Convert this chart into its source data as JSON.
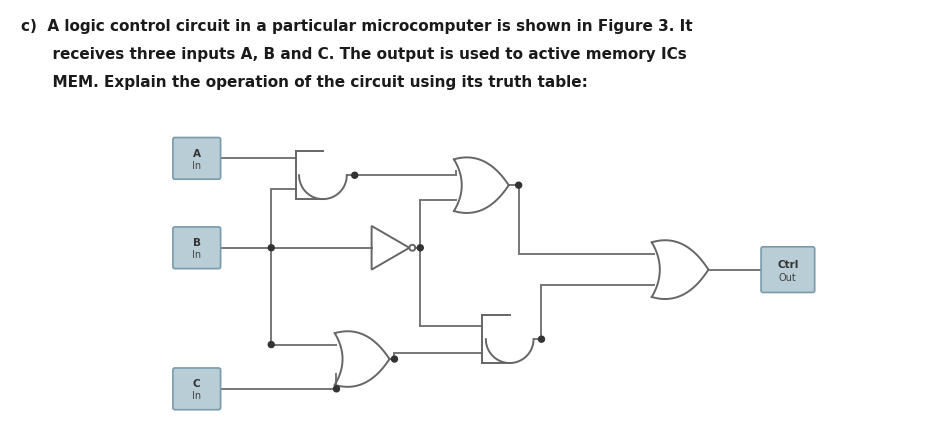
{
  "text_color": "#1a1a1a",
  "wire_color": "#777777",
  "box_fill": "#b8cdd6",
  "box_edge": "#7a9aaa",
  "background": "#ffffff",
  "title_line1": "c)  A logic control circuit in a particular microcomputer is shown in Figure 3. It",
  "title_line2": "      receives three inputs A, B and C. The output is used to active memory ICs",
  "title_line3": "      MEM. Explain the operation of the circuit using its truth table:",
  "title_fontsize": 11.0,
  "gate_color": "#666666",
  "dot_color": "#333333",
  "dot_r": 0.005
}
